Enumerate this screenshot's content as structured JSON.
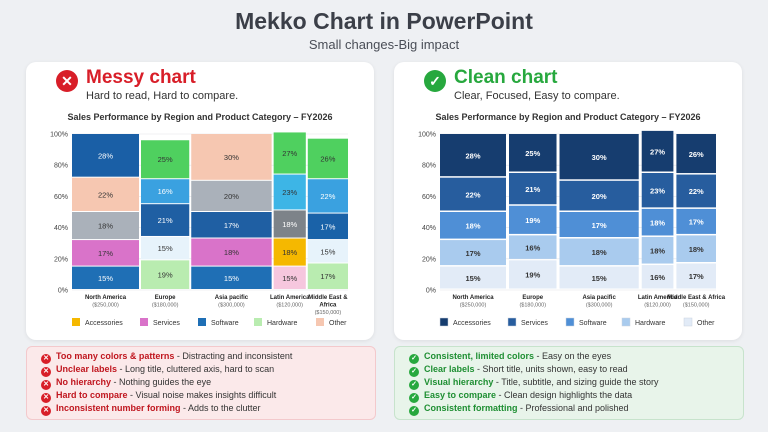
{
  "header": {
    "title": "Mekko Chart in PowerPoint",
    "subtitle": "Small changes-Big impact"
  },
  "messy": {
    "icon": "close-icon",
    "heading": "Messy chart",
    "sub": "Hard to read, Hard to compare.",
    "points": [
      {
        "key": "Too many colors & patterns",
        "text": " - Distracting and inconsistent"
      },
      {
        "key": "Unclear labels",
        "text": " - Long title, cluttered axis, hard to scan"
      },
      {
        "key": "No hierarchy",
        "text": " - Nothing guides the eye"
      },
      {
        "key": "Hard to compare",
        "text": " - Visual noise makes insights difficult"
      },
      {
        "key": "Inconsistent number forming",
        "text": " - Adds to the clutter"
      }
    ]
  },
  "clean": {
    "icon": "check-icon",
    "heading": "Clean chart",
    "sub": "Clear, Focused, Easy to compare.",
    "points": [
      {
        "key": "Consistent, limited colors",
        "text": " - Easy on the eyes"
      },
      {
        "key": "Clear labels",
        "text": " - Short title, units shown, easy to read"
      },
      {
        "key": "Visual hierarchy",
        "text": " - Title, subtitle, and sizing guide the story"
      },
      {
        "key": "Easy to compare",
        "text": " - Clean design highlights the data"
      },
      {
        "key": "Consistent formatting",
        "text": " - Professional and polished"
      }
    ]
  },
  "chart_data": [
    {
      "type": "bar",
      "stacked": true,
      "variable_width": true,
      "title": "Sales Performance by Region and Product Category – FY2026",
      "ylim": [
        0,
        100
      ],
      "yticks": [
        "0%",
        "20%",
        "40%",
        "60%",
        "80%",
        "100%"
      ],
      "categories": [
        "North America",
        "Europe",
        "Asia pacific",
        "Latin America",
        "Middle East & Africa"
      ],
      "category_labels": [
        [
          "North America",
          "($250,000)"
        ],
        [
          "Europe",
          "($180,000)"
        ],
        [
          "Asia pacific",
          "($300,000)"
        ],
        [
          "Latin America",
          "($120,000)"
        ],
        [
          "Middle East &",
          "Africa",
          "($150,000)"
        ]
      ],
      "widths": [
        250000,
        180000,
        300000,
        120000,
        150000
      ],
      "series": [
        {
          "name": "Software",
          "color": "#1f6fb5",
          "values": [
            15,
            19,
            15,
            15,
            17
          ]
        },
        {
          "name": "Services",
          "color": "#d973c9",
          "values": [
            17,
            15,
            18,
            18,
            15
          ]
        },
        {
          "name": "Accessories",
          "color": "#aab1ba",
          "values": [
            18,
            21,
            17,
            18,
            17
          ]
        },
        {
          "name": "Other",
          "color": "#1a62a8",
          "values": [
            22,
            16,
            20,
            23,
            22
          ]
        },
        {
          "name": "Hardware",
          "color": "#3db5e6",
          "values": [
            28,
            25,
            30,
            27,
            26
          ]
        }
      ],
      "cell_colors": [
        [
          "#1f6fb5",
          "#d973c9",
          "#aab1ba",
          "#f6c7b1",
          "#1a5fa6"
        ],
        [
          "#b9ecb0",
          "#e7f3fb",
          "#1f5fa3",
          "#3aa1e0",
          "#4fd05f"
        ],
        [
          "#1f6fb5",
          "#d973c9",
          "#1f5fa3",
          "#aab1ba",
          "#f6c7b1"
        ],
        [
          "#f6c7de",
          "#f5b800",
          "#7d8389",
          "#3db5e6",
          "#4fd05f"
        ],
        [
          "#b9ecb0",
          "#e7f3fb",
          "#1a62a8",
          "#3aa1e0",
          "#4fd05f"
        ]
      ],
      "legend": [
        "Accessories",
        "Services",
        "Software",
        "Hardware",
        "Other"
      ],
      "legend_colors": [
        "#f5b800",
        "#d973c9",
        "#1f6fb5",
        "#b9ecb0",
        "#f6c7b1"
      ]
    },
    {
      "type": "bar",
      "stacked": true,
      "variable_width": true,
      "title": "Sales Performance by Region and Product Category – FY2026",
      "ylim": [
        0,
        100
      ],
      "yticks": [
        "0%",
        "20%",
        "40%",
        "60%",
        "80%",
        "100%"
      ],
      "categories": [
        "North America",
        "Europe",
        "Asia pacific",
        "Latin America",
        "Middle East & Africa"
      ],
      "category_labels": [
        [
          "North America",
          "($250,000)"
        ],
        [
          "Europe",
          "($180,000)"
        ],
        [
          "Asia pacific",
          "($300,000)"
        ],
        [
          "Latin America",
          "($120,000)"
        ],
        [
          "Middle East & Africa",
          "($150,000)"
        ]
      ],
      "widths": [
        250000,
        180000,
        300000,
        120000,
        150000
      ],
      "series": [
        {
          "name": "Other",
          "color": "#e2ebf7",
          "values": [
            15,
            19,
            15,
            16,
            17
          ]
        },
        {
          "name": "Hardware",
          "color": "#a9cbee",
          "values": [
            17,
            16,
            18,
            18,
            18
          ]
        },
        {
          "name": "Software",
          "color": "#4f8fd6",
          "values": [
            18,
            19,
            17,
            18,
            17
          ]
        },
        {
          "name": "Services",
          "color": "#275d9e",
          "values": [
            22,
            21,
            20,
            23,
            22
          ]
        },
        {
          "name": "Accessories",
          "color": "#163d6f",
          "values": [
            28,
            25,
            30,
            27,
            26
          ]
        }
      ],
      "legend": [
        "Accessories",
        "Services",
        "Software",
        "Hardware",
        "Other"
      ],
      "legend_colors": [
        "#163d6f",
        "#275d9e",
        "#4f8fd6",
        "#a9cbee",
        "#e2ebf7"
      ]
    }
  ]
}
